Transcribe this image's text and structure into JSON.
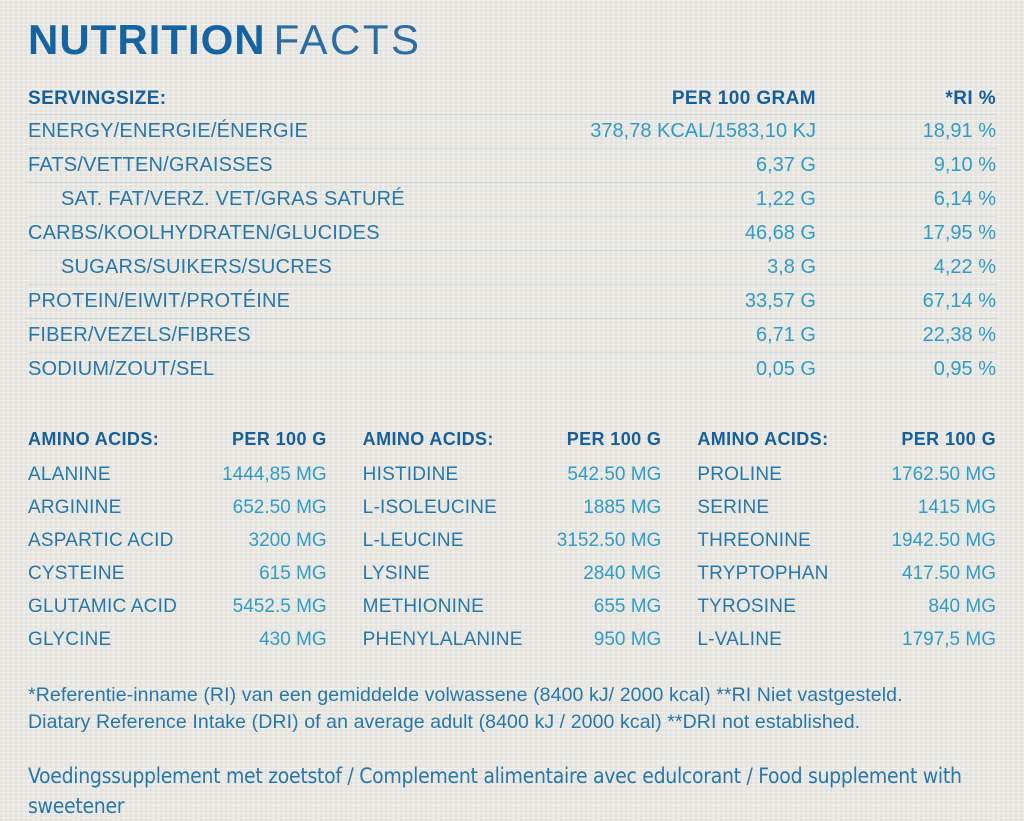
{
  "title": {
    "word_bold": "NUTRITION",
    "word_light": "FACTS"
  },
  "main_table": {
    "header": {
      "label": "SERVINGSIZE:",
      "per100_col": "PER 100 GRAM",
      "ri_col": "*RI %"
    },
    "rows": [
      {
        "label": "ENERGY/ENERGIE/ÉNERGIE",
        "per100": "378,78 KCAL/1583,10 KJ",
        "ri": "18,91 %"
      },
      {
        "label": "FATS/VETTEN/GRAISSES",
        "per100": "6,37 G",
        "ri": "9,10 %"
      },
      {
        "label": "SAT. FAT/VERZ. VET/GRAS SATURÉ",
        "per100": "1,22 G",
        "ri": "6,14 %"
      },
      {
        "label": "CARBS/KOOLHYDRATEN/GLUCIDES",
        "per100": "46,68 G",
        "ri": "17,95 %"
      },
      {
        "label": "SUGARS/SUIKERS/SUCRES",
        "per100": "3,8 G",
        "ri": "4,22 %"
      },
      {
        "label": "PROTEIN/EIWIT/PROTÉINE",
        "per100": "33,57 G",
        "ri": "67,14 %"
      },
      {
        "label": "FIBER/VEZELS/FIBRES",
        "per100": "6,71 G",
        "ri": "22,38 %"
      },
      {
        "label": "SODIUM/ZOUT/SEL",
        "per100": "0,05 G",
        "ri": "0,95 %"
      }
    ]
  },
  "amino_tables": [
    {
      "header_label": "AMINO ACIDS:",
      "header_col": "PER 100 G",
      "rows": [
        {
          "name": "ALANINE",
          "value": "1444,85 MG"
        },
        {
          "name": "ARGININE",
          "value": "652.50 MG"
        },
        {
          "name": "ASPARTIC ACID",
          "value": "3200 MG"
        },
        {
          "name": "CYSTEINE",
          "value": "615 MG"
        },
        {
          "name": "GLUTAMIC ACID",
          "value": "5452.5 MG"
        },
        {
          "name": "GLYCINE",
          "value": "430 MG"
        }
      ]
    },
    {
      "header_label": "AMINO ACIDS:",
      "header_col": "PER 100 G",
      "rows": [
        {
          "name": "HISTIDINE",
          "value": "542.50 MG"
        },
        {
          "name": "L-ISOLEUCINE",
          "value": "1885 MG"
        },
        {
          "name": "L-LEUCINE",
          "value": "3152.50 MG"
        },
        {
          "name": "LYSINE",
          "value": "2840 MG"
        },
        {
          "name": "METHIONINE",
          "value": "655 MG"
        },
        {
          "name": "PHENYLALANINE",
          "value": "950 MG"
        }
      ]
    },
    {
      "header_label": "AMINO ACIDS:",
      "header_col": "PER 100 G",
      "rows": [
        {
          "name": "PROLINE",
          "value": "1762.50 MG"
        },
        {
          "name": "SERINE",
          "value": "1415 MG"
        },
        {
          "name": "THREONINE",
          "value": "1942.50 MG"
        },
        {
          "name": "TRYPTOPHAN",
          "value": "417.50 MG"
        },
        {
          "name": "TYROSINE",
          "value": "840 MG"
        },
        {
          "name": "L-VALINE",
          "value": "1797,5 MG"
        }
      ]
    }
  ],
  "footnotes": {
    "reference_line1": "*Referentie-inname (RI) van een gemiddelde volwassene (8400 kJ/ 2000 kcal) **RI Niet vastgesteld.",
    "reference_line2": "Diatary Reference Intake (DRI) of an average adult (8400 kJ / 2000 kcal) **DRI not established.",
    "supplement_line1": "Voedingssupplement met zoetstof / Complement alimentaire avec edulcorant / Food supplement with",
    "supplement_line2": "sweetener"
  },
  "colors": {
    "background": "#eae8e3",
    "heading_navy": "#15609a",
    "label_blue": "#2678ab",
    "value_cyan": "#2f9dc8"
  }
}
